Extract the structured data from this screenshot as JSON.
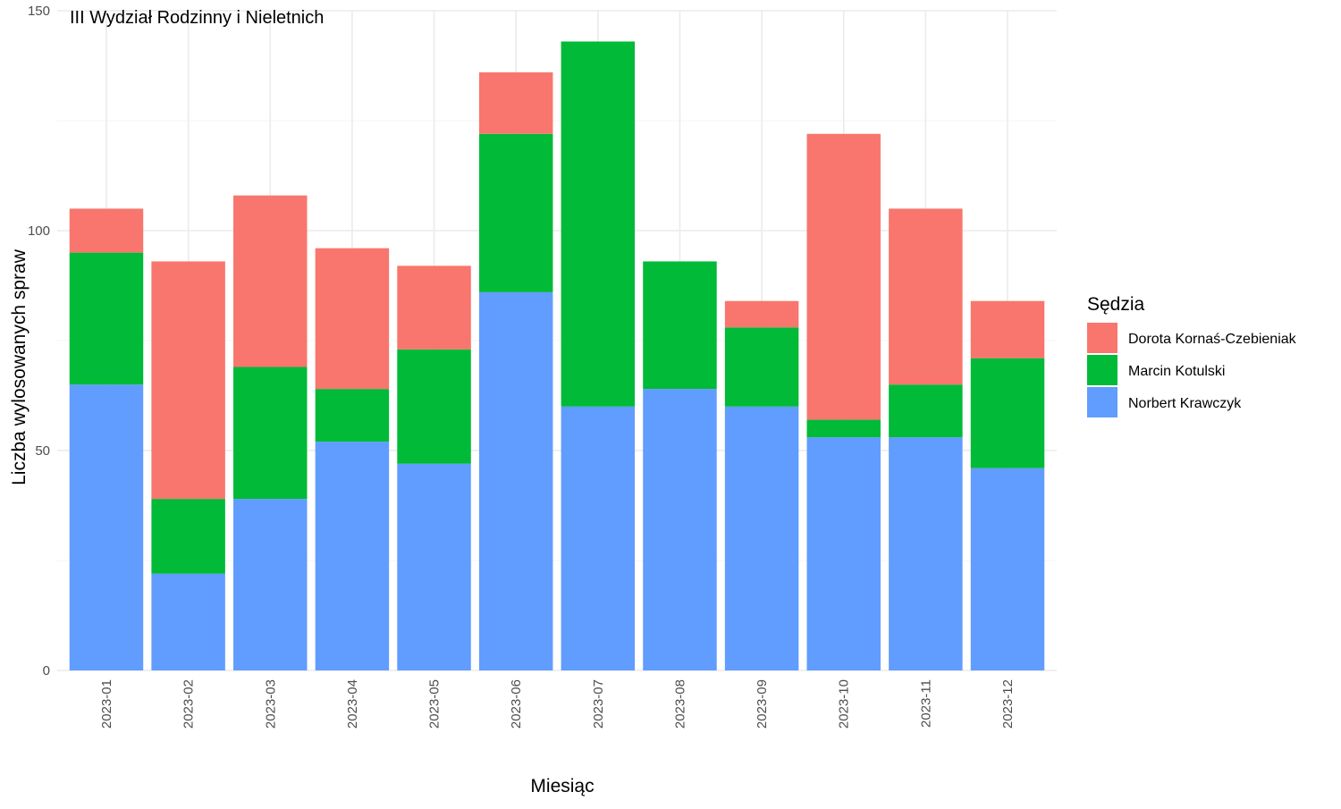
{
  "chart_data": {
    "type": "bar",
    "stacked": true,
    "title": "III Wydział Rodzinny i Nieletnich",
    "xlabel": "Miesiąc",
    "ylabel": "Liczba wylosowanych spraw",
    "ylim": [
      0,
      150
    ],
    "yticks": [
      0,
      50,
      100,
      150
    ],
    "grid": true,
    "legend": {
      "title": "Sędzia",
      "position": "right"
    },
    "categories": [
      "2023-01",
      "2023-02",
      "2023-03",
      "2023-04",
      "2023-05",
      "2023-06",
      "2023-07",
      "2023-08",
      "2023-09",
      "2023-10",
      "2023-11",
      "2023-12"
    ],
    "series": [
      {
        "name": "Dorota Kornaś-Czebieniak",
        "color": "#F8766D",
        "values": [
          10,
          54,
          39,
          32,
          19,
          14,
          0,
          0,
          6,
          65,
          40,
          13
        ]
      },
      {
        "name": "Marcin Kotulski",
        "color": "#00BA38",
        "values": [
          30,
          17,
          30,
          12,
          26,
          36,
          83,
          29,
          18,
          4,
          12,
          25
        ]
      },
      {
        "name": "Norbert Krawczyk",
        "color": "#619CFF",
        "values": [
          65,
          22,
          39,
          52,
          47,
          86,
          60,
          64,
          60,
          53,
          53,
          46
        ]
      }
    ],
    "stack_order_bottom_to_top": [
      "Norbert Krawczyk",
      "Marcin Kotulski",
      "Dorota Kornaś-Czebieniak"
    ]
  }
}
